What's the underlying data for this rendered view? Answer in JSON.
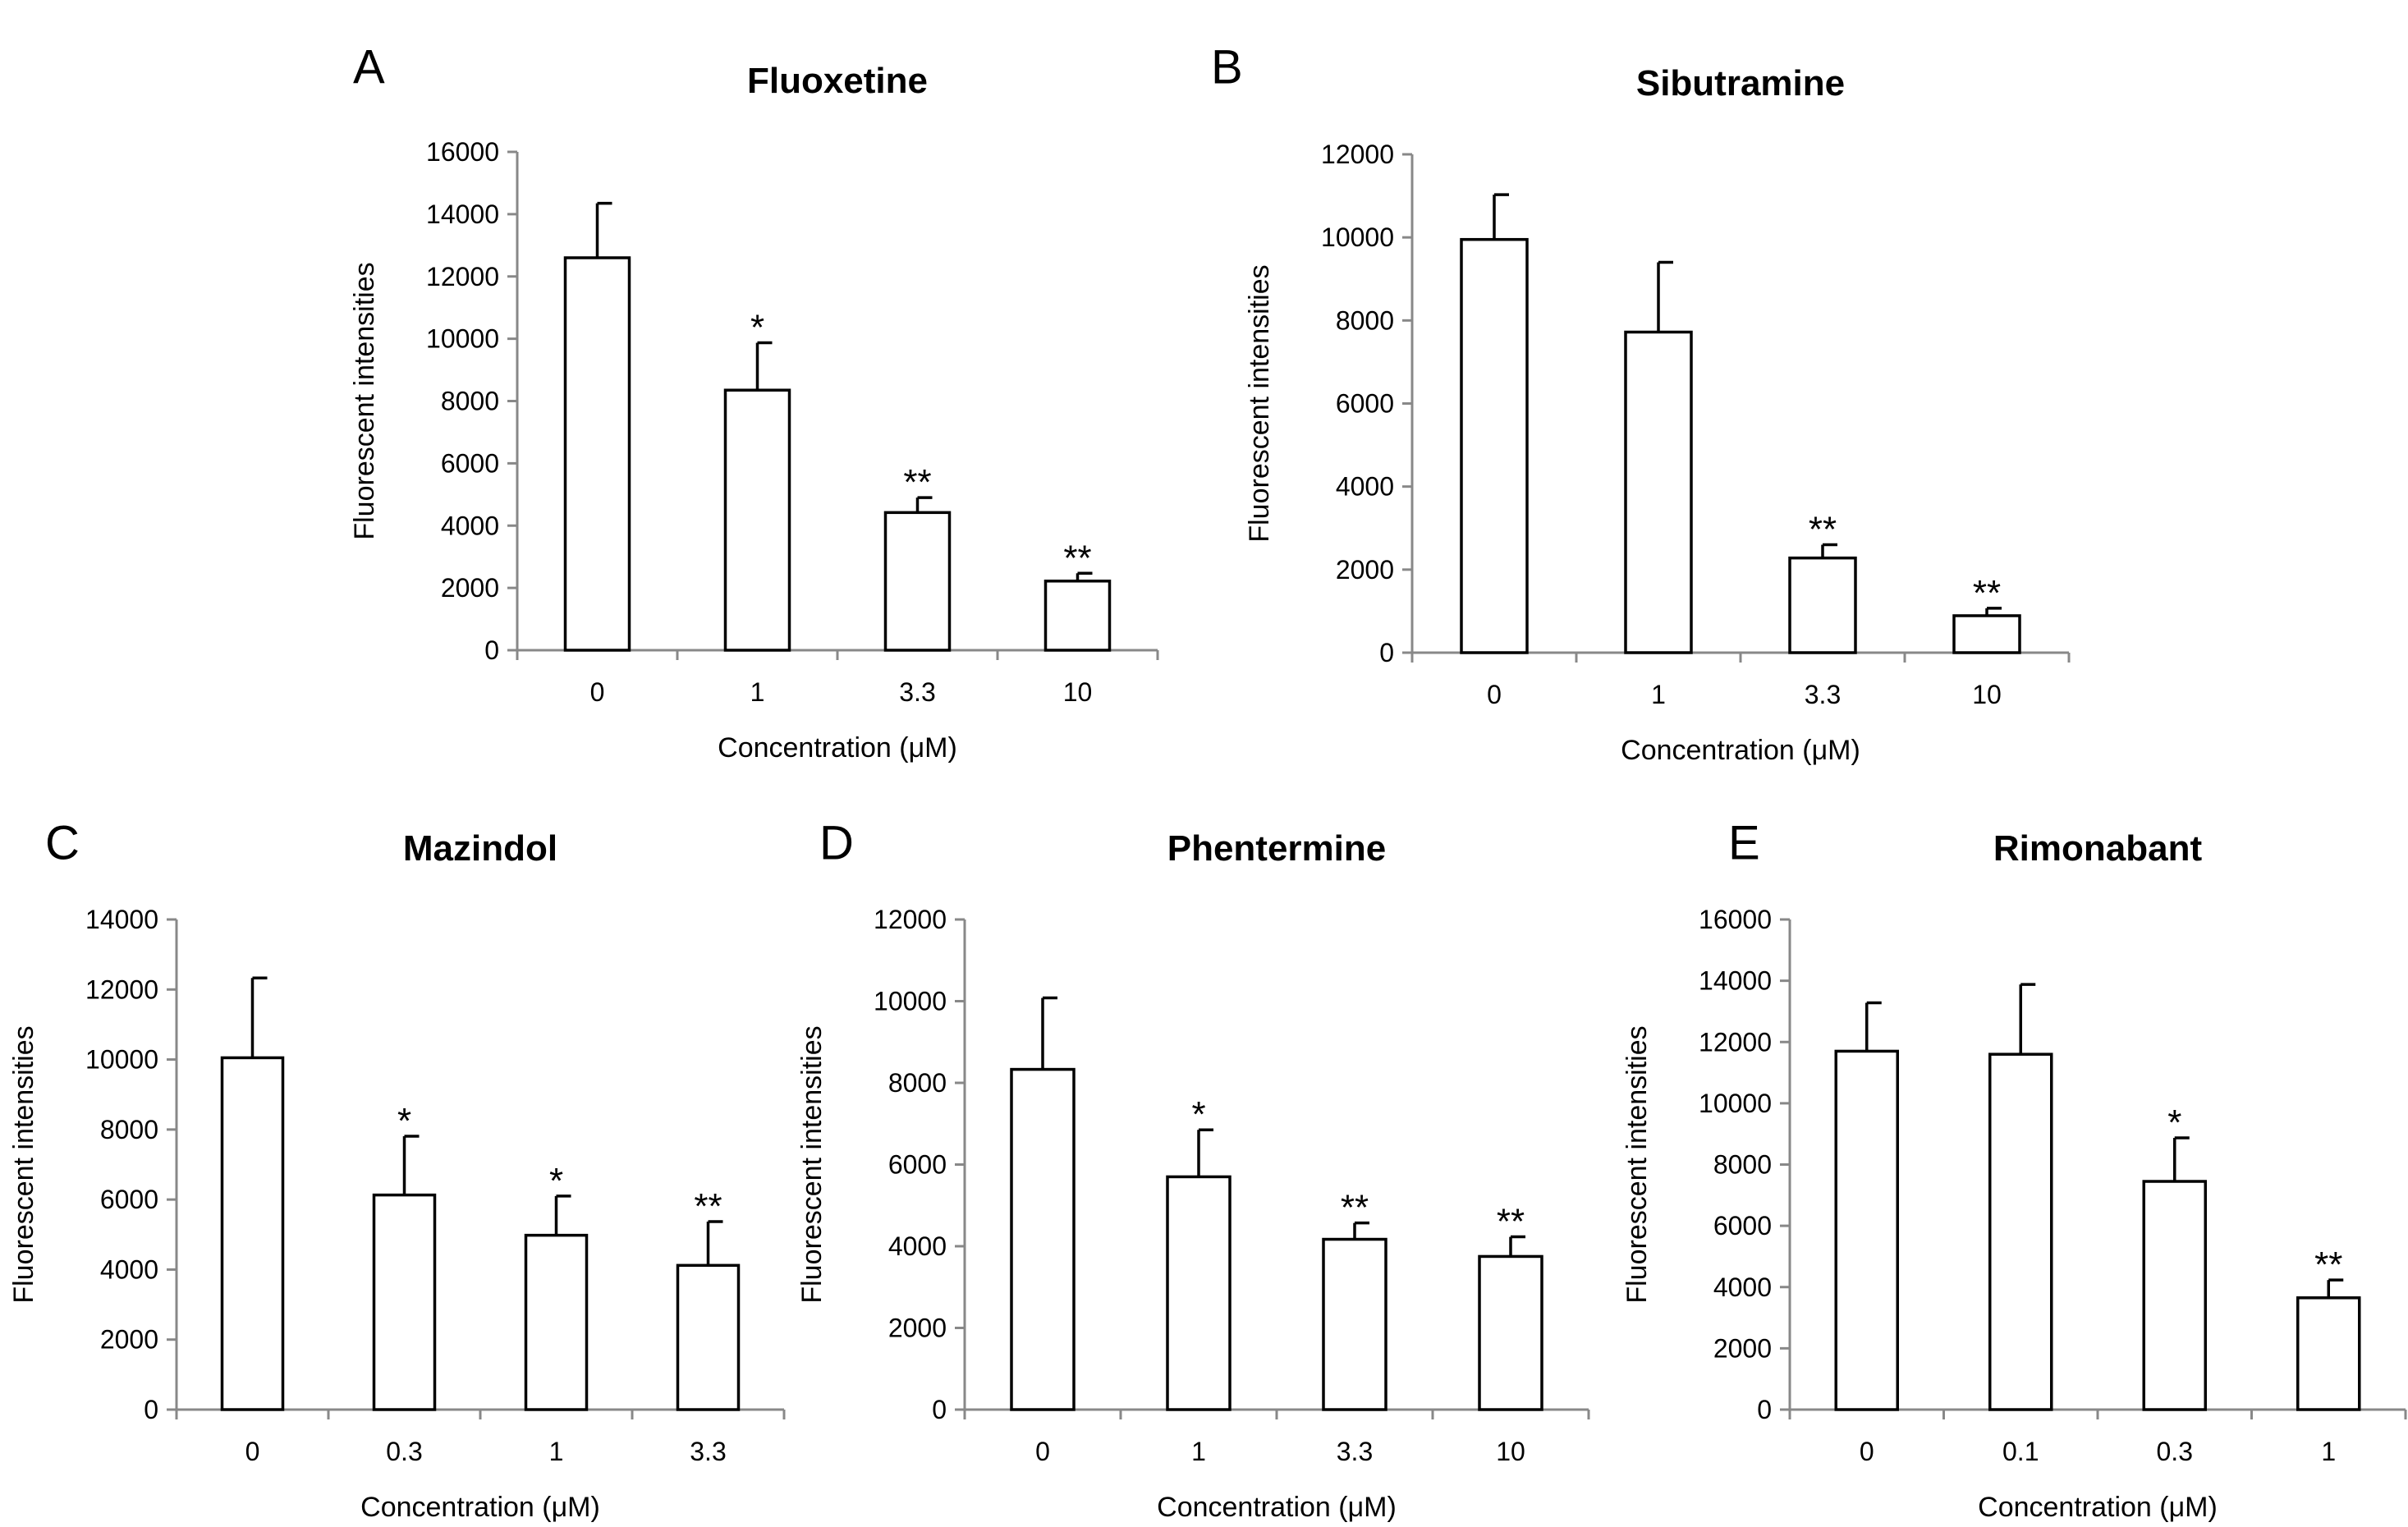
{
  "chart_data": [
    {
      "type": "bar",
      "panel": "A",
      "title": "Fluoxetine",
      "xlabel": "Concentration (μM)",
      "ylabel": "Fluorescent intensities",
      "categories": [
        "0",
        "1",
        "3.3",
        "10"
      ],
      "values": [
        12600,
        8350,
        4420,
        2220
      ],
      "errors": [
        1750,
        1520,
        480,
        250
      ],
      "annotations": [
        "",
        "*",
        "**",
        "**"
      ],
      "ylim": [
        0,
        16000
      ],
      "yticks": [
        "0",
        "2000",
        "4000",
        "6000",
        "8000",
        "10000",
        "12000",
        "14000",
        "16000"
      ]
    },
    {
      "type": "bar",
      "panel": "B",
      "title": "Sibutramine",
      "xlabel": "Concentration (μM)",
      "ylabel": "Fluorescent intensities",
      "categories": [
        "0",
        "1",
        "3.3",
        "10"
      ],
      "values": [
        9950,
        7720,
        2280,
        890
      ],
      "errors": [
        1080,
        1680,
        320,
        180
      ],
      "annotations": [
        "",
        "",
        "**",
        "**"
      ],
      "ylim": [
        0,
        12000
      ],
      "yticks": [
        "0",
        "2000",
        "4000",
        "6000",
        "8000",
        "10000",
        "12000"
      ]
    },
    {
      "type": "bar",
      "panel": "C",
      "title": "Mazindol",
      "xlabel": "Concentration (μM)",
      "ylabel": "Fluorescent intensities",
      "categories": [
        "0",
        "0.3",
        "1",
        "3.3"
      ],
      "values": [
        10050,
        6130,
        4980,
        4120
      ],
      "errors": [
        2280,
        1680,
        1120,
        1250
      ],
      "annotations": [
        "",
        "*",
        "*",
        "**"
      ],
      "ylim": [
        0,
        14000
      ],
      "yticks": [
        "0",
        "2000",
        "4000",
        "6000",
        "8000",
        "10000",
        "12000",
        "14000"
      ]
    },
    {
      "type": "bar",
      "panel": "D",
      "title": "Phentermine",
      "xlabel": "Concentration (μM)",
      "ylabel": "Fluorescent intensities",
      "categories": [
        "0",
        "1",
        "3.3",
        "10"
      ],
      "values": [
        8330,
        5700,
        4170,
        3750
      ],
      "errors": [
        1750,
        1150,
        400,
        480
      ],
      "annotations": [
        "",
        "*",
        "**",
        "**"
      ],
      "ylim": [
        0,
        12000
      ],
      "yticks": [
        "0",
        "2000",
        "4000",
        "6000",
        "8000",
        "10000",
        "12000"
      ]
    },
    {
      "type": "bar",
      "panel": "E",
      "title": "Rimonabant",
      "xlabel": "Concentration (μM)",
      "ylabel": "Fluorescent intensities",
      "categories": [
        "0",
        "0.1",
        "0.3",
        "1"
      ],
      "values": [
        11700,
        11600,
        7450,
        3650
      ],
      "errors": [
        1580,
        2280,
        1420,
        580
      ],
      "annotations": [
        "",
        "",
        "*",
        "**"
      ],
      "ylim": [
        0,
        16000
      ],
      "yticks": [
        "0",
        "2000",
        "4000",
        "6000",
        "8000",
        "10000",
        "12000",
        "14000",
        "16000"
      ]
    }
  ]
}
